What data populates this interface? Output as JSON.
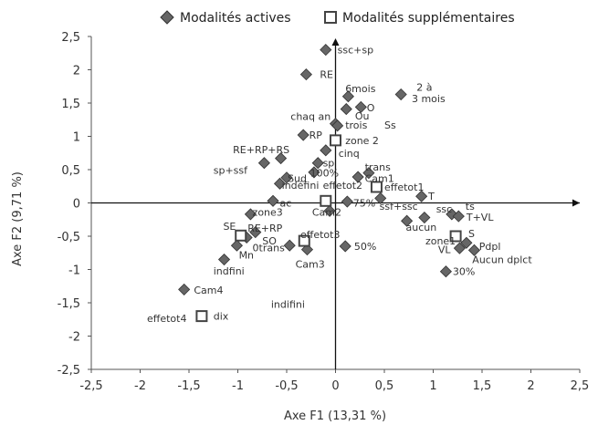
{
  "chart_data": {
    "type": "scatter",
    "xlabel": "Axe F1 (13,31 %)",
    "ylabel": "Axe F2 (9,71 %)",
    "xlim": [
      -2.5,
      2.5
    ],
    "ylim": [
      -2.5,
      2.5
    ],
    "x_ticks": [
      "-2,5",
      "-2",
      "-1,5",
      "-1",
      "-0,5",
      "0",
      "0,5",
      "1",
      "1,5",
      "2",
      "2,5"
    ],
    "y_ticks": [
      "2,5",
      "2",
      "1,5",
      "1",
      "0,5",
      "0",
      "-0,5",
      "-1",
      "-1,5",
      "-2",
      "-2,5"
    ],
    "grid": false,
    "legend_position": "top",
    "legend": {
      "active": "Modalités actives",
      "supplementary": "Modalités supplémentaires"
    },
    "series": [
      {
        "name": "Modalités actives",
        "marker": "diamond",
        "color": "#666666",
        "points": [
          {
            "x": -0.1,
            "y": 2.3
          },
          {
            "x": -0.3,
            "y": 1.93
          },
          {
            "x": 0.13,
            "y": 1.6
          },
          {
            "x": 0.67,
            "y": 1.63
          },
          {
            "x": 0.26,
            "y": 1.44
          },
          {
            "x": 0.11,
            "y": 1.41
          },
          {
            "x": 0.0,
            "y": 1.19
          },
          {
            "x": 0.02,
            "y": 1.16
          },
          {
            "x": -0.33,
            "y": 1.02
          },
          {
            "x": -0.1,
            "y": 0.79
          },
          {
            "x": -0.56,
            "y": 0.67
          },
          {
            "x": -0.18,
            "y": 0.6
          },
          {
            "x": -0.73,
            "y": 0.6
          },
          {
            "x": -0.22,
            "y": 0.46
          },
          {
            "x": -0.5,
            "y": 0.38
          },
          {
            "x": 0.23,
            "y": 0.39
          },
          {
            "x": 0.34,
            "y": 0.45
          },
          {
            "x": -0.57,
            "y": 0.29
          },
          {
            "x": 0.46,
            "y": 0.07
          },
          {
            "x": 0.88,
            "y": 0.1
          },
          {
            "x": 0.12,
            "y": 0.02
          },
          {
            "x": -0.64,
            "y": 0.03
          },
          {
            "x": -0.06,
            "y": -0.12
          },
          {
            "x": -0.87,
            "y": -0.17
          },
          {
            "x": 1.19,
            "y": -0.17
          },
          {
            "x": 1.26,
            "y": -0.2
          },
          {
            "x": 0.91,
            "y": -0.22
          },
          {
            "x": 0.73,
            "y": -0.27
          },
          {
            "x": -0.82,
            "y": -0.44
          },
          {
            "x": -0.91,
            "y": -0.52
          },
          {
            "x": 1.34,
            "y": -0.6
          },
          {
            "x": 1.27,
            "y": -0.68
          },
          {
            "x": 1.42,
            "y": -0.71
          },
          {
            "x": -1.01,
            "y": -0.64
          },
          {
            "x": -0.47,
            "y": -0.64
          },
          {
            "x": -0.29,
            "y": -0.7
          },
          {
            "x": 0.1,
            "y": -0.65
          },
          {
            "x": -1.14,
            "y": -0.85
          },
          {
            "x": 1.13,
            "y": -1.03
          },
          {
            "x": -1.55,
            "y": -1.3
          }
        ]
      },
      {
        "name": "Modalités supplémentaires",
        "marker": "square",
        "color": "#444444",
        "points": [
          {
            "x": 0.0,
            "y": 0.94
          },
          {
            "x": 0.42,
            "y": 0.24
          },
          {
            "x": -0.1,
            "y": 0.03
          },
          {
            "x": -0.97,
            "y": -0.49
          },
          {
            "x": -0.32,
            "y": -0.57
          },
          {
            "x": 1.23,
            "y": -0.5
          },
          {
            "x": -1.37,
            "y": -1.7
          }
        ]
      }
    ],
    "annotations": [
      {
        "text": "ssc+sp",
        "x": 0.02,
        "y": 2.3
      },
      {
        "text": "RE",
        "x": -0.16,
        "y": 1.93
      },
      {
        "text": "6mois",
        "x": 0.1,
        "y": 1.72
      },
      {
        "text": "2 à",
        "x": 0.83,
        "y": 1.74
      },
      {
        "text": "3 mois",
        "x": 0.78,
        "y": 1.57
      },
      {
        "text": "O",
        "x": 0.32,
        "y": 1.43
      },
      {
        "text": "Ou",
        "x": 0.2,
        "y": 1.31
      },
      {
        "text": "chaq an",
        "x": -0.46,
        "y": 1.3
      },
      {
        "text": "trois",
        "x": 0.1,
        "y": 1.17
      },
      {
        "text": "Ss",
        "x": 0.5,
        "y": 1.17
      },
      {
        "text": "RP",
        "x": -0.27,
        "y": 1.02
      },
      {
        "text": "zone 2",
        "x": 0.1,
        "y": 0.94
      },
      {
        "text": "cinq",
        "x": 0.03,
        "y": 0.75
      },
      {
        "text": "RE+RP+RS",
        "x": -1.05,
        "y": 0.8
      },
      {
        "text": "sp",
        "x": -0.13,
        "y": 0.6
      },
      {
        "text": "sp+ssf",
        "x": -1.25,
        "y": 0.49
      },
      {
        "text": "trans",
        "x": 0.3,
        "y": 0.54
      },
      {
        "text": "100%",
        "x": -0.26,
        "y": 0.45
      },
      {
        "text": "Sud",
        "x": -0.49,
        "y": 0.37
      },
      {
        "text": "Cam1",
        "x": 0.3,
        "y": 0.37
      },
      {
        "text": "indéfini",
        "x": -0.55,
        "y": 0.27
      },
      {
        "text": "effetot2",
        "x": -0.13,
        "y": 0.27
      },
      {
        "text": "effetot1",
        "x": 0.5,
        "y": 0.24
      },
      {
        "text": "T",
        "x": 0.95,
        "y": 0.1
      },
      {
        "text": "75%",
        "x": 0.18,
        "y": 0.0
      },
      {
        "text": "ac",
        "x": -0.57,
        "y": 0.0
      },
      {
        "text": "ssf+ssc",
        "x": 0.45,
        "y": -0.05
      },
      {
        "text": "ssc",
        "x": 1.03,
        "y": -0.09
      },
      {
        "text": "ts",
        "x": 1.33,
        "y": -0.05
      },
      {
        "text": "Cam2",
        "x": -0.24,
        "y": -0.14
      },
      {
        "text": "zone3",
        "x": -0.85,
        "y": -0.14
      },
      {
        "text": "T+VL",
        "x": 1.34,
        "y": -0.21
      },
      {
        "text": "aucun",
        "x": 0.72,
        "y": -0.36
      },
      {
        "text": "SE",
        "x": -1.15,
        "y": -0.35
      },
      {
        "text": "RE+RP",
        "x": -0.9,
        "y": -0.38
      },
      {
        "text": "effetot3",
        "x": -0.36,
        "y": -0.47
      },
      {
        "text": "S",
        "x": 1.36,
        "y": -0.46
      },
      {
        "text": "zone1",
        "x": 0.92,
        "y": -0.57
      },
      {
        "text": "SO",
        "x": -0.75,
        "y": -0.57
      },
      {
        "text": "Pdpl",
        "x": 1.47,
        "y": -0.65
      },
      {
        "text": "0trans",
        "x": -0.85,
        "y": -0.67
      },
      {
        "text": "VL",
        "x": 1.05,
        "y": -0.7
      },
      {
        "text": "50%",
        "x": 0.19,
        "y": -0.65
      },
      {
        "text": "Mn",
        "x": -0.99,
        "y": -0.78
      },
      {
        "text": "Aucun dplct",
        "x": 1.4,
        "y": -0.85
      },
      {
        "text": "Cam3",
        "x": -0.41,
        "y": -0.92
      },
      {
        "text": "indfini",
        "x": -1.25,
        "y": -1.02
      },
      {
        "text": "30%",
        "x": 1.2,
        "y": -1.03
      },
      {
        "text": "Cam4",
        "x": -1.45,
        "y": -1.31
      },
      {
        "text": "indifini",
        "x": -0.66,
        "y": -1.52
      },
      {
        "text": "effetot4",
        "x": -1.93,
        "y": -1.73
      },
      {
        "text": "dix",
        "x": -1.25,
        "y": -1.7
      }
    ]
  }
}
